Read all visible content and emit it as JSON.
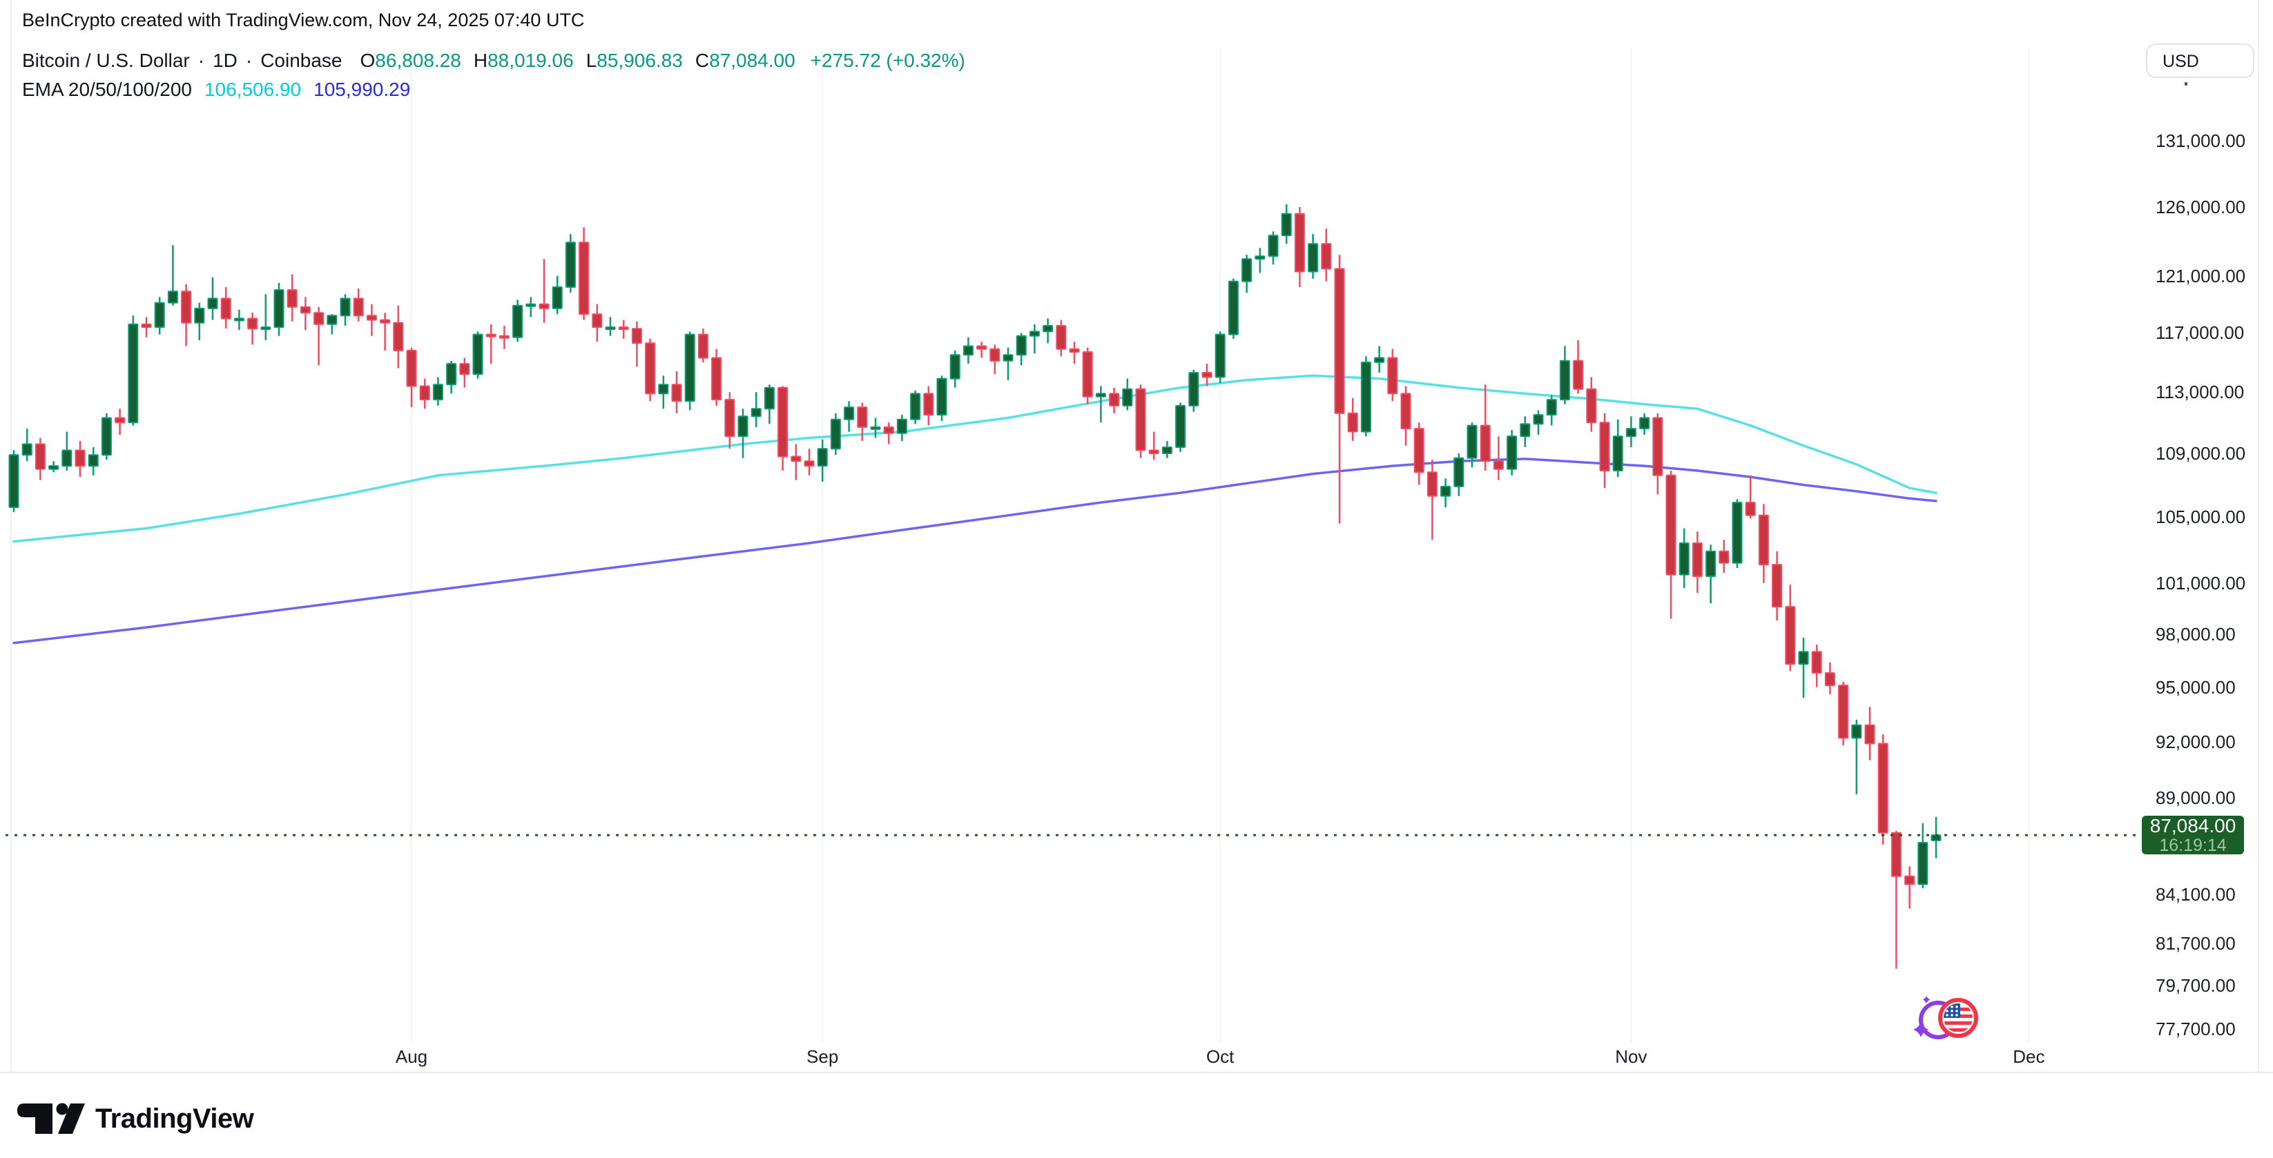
{
  "header": {
    "watermark": "BeInCrypto created with TradingView.com, Nov 24, 2025 07:40 UTC",
    "legend": {
      "symbol": "Bitcoin / U.S. Dollar",
      "separator": "·",
      "interval": "1D",
      "exchange": "Coinbase",
      "ohlc": {
        "o_label": "O",
        "o": "86,808.28",
        "h_label": "H",
        "h": "88,019.06",
        "l_label": "L",
        "l": "85,906.83",
        "c_label": "C",
        "c": "87,084.00",
        "change": "+275.72 (+0.32%)"
      },
      "indicator": {
        "label": "EMA 20/50/100/200",
        "value_fast": "106,506.90",
        "value_slow": "105,990.29"
      }
    }
  },
  "price_axis": {
    "currency": "USD",
    "ticks": [
      {
        "label": "131,000.00",
        "value": 131000
      },
      {
        "label": "126,000.00",
        "value": 126000
      },
      {
        "label": "121,000.00",
        "value": 121000
      },
      {
        "label": "117,000.00",
        "value": 117000
      },
      {
        "label": "113,000.00",
        "value": 113000
      },
      {
        "label": "109,000.00",
        "value": 109000
      },
      {
        "label": "105,000.00",
        "value": 105000
      },
      {
        "label": "101,000.00",
        "value": 101000
      },
      {
        "label": "98,000.00",
        "value": 98000
      },
      {
        "label": "95,000.00",
        "value": 95000
      },
      {
        "label": "92,000.00",
        "value": 92000
      },
      {
        "label": "89,000.00",
        "value": 89000
      },
      {
        "label": "84,100.00",
        "value": 84100
      },
      {
        "label": "81,700.00",
        "value": 81700
      },
      {
        "label": "79,700.00",
        "value": 79700
      },
      {
        "label": "77,700.00",
        "value": 77700
      }
    ],
    "last_price": {
      "label": "87,084.00",
      "countdown": "16:19:14",
      "value": 87084
    }
  },
  "time_axis": {
    "months": [
      {
        "label": "Aug",
        "day_index": 30
      },
      {
        "label": "Sep",
        "day_index": 61
      },
      {
        "label": "Oct",
        "day_index": 91
      },
      {
        "label": "Nov",
        "day_index": 122
      },
      {
        "label": "Dec",
        "day_index": 152
      }
    ]
  },
  "footer": {
    "brand": "TradingView"
  },
  "colors": {
    "up_body": "#155F34",
    "up_border": "#0A9B71",
    "down_body": "#C93745",
    "down_border": "#F24B5F",
    "ema_fast_line": "#57E0E6",
    "ema_slow_line": "#6A66F2",
    "dotted_line": "#1A5B25",
    "label_bg": "#1A5E28",
    "grid": "#F2F4F7",
    "frame": "#ECEEF2",
    "accent_up": "#089981",
    "accent_down": "#F23645",
    "flag_blue": "#2450A8",
    "coin_purple": "#8B3DE8"
  },
  "chart_data": {
    "type": "candlestick",
    "title": "Bitcoin / U.S. Dollar · 1D · Coinbase",
    "scale": "log",
    "start_date": "2025-07-02",
    "end_date": "2025-11-24",
    "ylim": [
      76500,
      134000
    ],
    "grid": "monthly-vertical",
    "last_price": 87084,
    "candles": [
      [
        105600,
        109200,
        105300,
        108900
      ],
      [
        108900,
        110600,
        108500,
        109600
      ],
      [
        109600,
        110000,
        107300,
        108000
      ],
      [
        108000,
        108500,
        107800,
        108200
      ],
      [
        108200,
        110400,
        107900,
        109200
      ],
      [
        109200,
        109800,
        107500,
        108200
      ],
      [
        108200,
        109400,
        107600,
        108900
      ],
      [
        108900,
        111600,
        108600,
        111300
      ],
      [
        111300,
        111900,
        110200,
        111000
      ],
      [
        111000,
        118200,
        110800,
        117600
      ],
      [
        117600,
        118100,
        116700,
        117400
      ],
      [
        117400,
        119500,
        116900,
        119100
      ],
      [
        119100,
        123200,
        118900,
        119900
      ],
      [
        119900,
        120400,
        116100,
        117700
      ],
      [
        117700,
        119100,
        116500,
        118700
      ],
      [
        118700,
        120900,
        117900,
        119400
      ],
      [
        119400,
        120200,
        117300,
        118000
      ],
      [
        118000,
        118600,
        117200,
        118000
      ],
      [
        118000,
        118400,
        116200,
        117300
      ],
      [
        117300,
        119700,
        116500,
        117400
      ],
      [
        117400,
        120500,
        116800,
        120000
      ],
      [
        120000,
        121100,
        117800,
        118800
      ],
      [
        118800,
        119500,
        117200,
        118400
      ],
      [
        118400,
        118800,
        114800,
        117600
      ],
      [
        117600,
        118300,
        116900,
        118200
      ],
      [
        118200,
        119700,
        117500,
        119400
      ],
      [
        119400,
        120100,
        117800,
        118200
      ],
      [
        118200,
        119000,
        116800,
        117900
      ],
      [
        117900,
        118400,
        115800,
        117700
      ],
      [
        117700,
        118900,
        114600,
        115800
      ],
      [
        115800,
        116000,
        112000,
        113400
      ],
      [
        113400,
        113900,
        111900,
        112500
      ],
      [
        112500,
        114000,
        112100,
        113500
      ],
      [
        113500,
        115100,
        112900,
        114900
      ],
      [
        114900,
        115300,
        113300,
        114200
      ],
      [
        114200,
        117100,
        113900,
        116900
      ],
      [
        116900,
        117600,
        114900,
        116800
      ],
      [
        116800,
        117500,
        115900,
        116700
      ],
      [
        116700,
        119300,
        116400,
        118900
      ],
      [
        118900,
        119500,
        118100,
        119000
      ],
      [
        119000,
        122200,
        117700,
        118700
      ],
      [
        118700,
        121000,
        118300,
        120200
      ],
      [
        120200,
        124000,
        119800,
        123400
      ],
      [
        123400,
        124500,
        117900,
        118300
      ],
      [
        118300,
        119000,
        116400,
        117400
      ],
      [
        117400,
        118100,
        116800,
        117400
      ],
      [
        117400,
        117900,
        116600,
        117300
      ],
      [
        117300,
        117800,
        114700,
        116300
      ],
      [
        116300,
        116600,
        112400,
        112900
      ],
      [
        112900,
        114100,
        111900,
        113500
      ],
      [
        113500,
        114400,
        111600,
        112400
      ],
      [
        112400,
        117100,
        111800,
        116900
      ],
      [
        116900,
        117300,
        115000,
        115300
      ],
      [
        115300,
        115900,
        112100,
        112500
      ],
      [
        112500,
        113000,
        109300,
        110100
      ],
      [
        110100,
        111900,
        108700,
        111400
      ],
      [
        111400,
        113000,
        110700,
        111900
      ],
      [
        111900,
        113500,
        110900,
        113300
      ],
      [
        113300,
        113400,
        107900,
        108800
      ],
      [
        108800,
        109600,
        107300,
        108500
      ],
      [
        108500,
        109300,
        107600,
        108200
      ],
      [
        108200,
        109900,
        107200,
        109300
      ],
      [
        109300,
        111600,
        108900,
        111200
      ],
      [
        111200,
        112400,
        110400,
        112000
      ],
      [
        112000,
        112300,
        109800,
        110700
      ],
      [
        110700,
        111300,
        110000,
        110700
      ],
      [
        110700,
        111000,
        109600,
        110300
      ],
      [
        110300,
        111500,
        109800,
        111200
      ],
      [
        111200,
        113100,
        110900,
        112900
      ],
      [
        112900,
        113400,
        110800,
        111500
      ],
      [
        111500,
        114100,
        111100,
        113900
      ],
      [
        113900,
        115800,
        113300,
        115500
      ],
      [
        115500,
        116700,
        114900,
        116100
      ],
      [
        116100,
        116400,
        115300,
        115900
      ],
      [
        115900,
        116200,
        114200,
        115100
      ],
      [
        115100,
        116000,
        113800,
        115500
      ],
      [
        115500,
        117000,
        114800,
        116800
      ],
      [
        116800,
        117600,
        115600,
        117100
      ],
      [
        117100,
        118000,
        116300,
        117500
      ],
      [
        117500,
        117900,
        115400,
        115900
      ],
      [
        115900,
        116400,
        114900,
        115700
      ],
      [
        115700,
        116000,
        112200,
        112700
      ],
      [
        112700,
        113400,
        111000,
        112900
      ],
      [
        112900,
        113300,
        111600,
        112100
      ],
      [
        112100,
        113900,
        111800,
        113200
      ],
      [
        113200,
        113500,
        108700,
        109200
      ],
      [
        109200,
        110400,
        108600,
        109000
      ],
      [
        109000,
        109800,
        108700,
        109400
      ],
      [
        109400,
        112300,
        109100,
        112100
      ],
      [
        112100,
        114500,
        111700,
        114300
      ],
      [
        114300,
        114900,
        113400,
        114000
      ],
      [
        114000,
        117100,
        113600,
        116900
      ],
      [
        116900,
        120800,
        116600,
        120600
      ],
      [
        120600,
        122500,
        119800,
        122200
      ],
      [
        122200,
        123000,
        121200,
        122400
      ],
      [
        122400,
        124200,
        121800,
        123900
      ],
      [
        123900,
        126200,
        123300,
        125500
      ],
      [
        125500,
        126000,
        120200,
        121300
      ],
      [
        121300,
        124000,
        120800,
        123300
      ],
      [
        123300,
        124400,
        120600,
        121500
      ],
      [
        121500,
        122500,
        104600,
        111600
      ],
      [
        111600,
        112600,
        109800,
        110400
      ],
      [
        110400,
        115400,
        110100,
        115000
      ],
      [
        115000,
        116100,
        114300,
        115300
      ],
      [
        115300,
        115900,
        112400,
        112900
      ],
      [
        112900,
        113400,
        109500,
        110600
      ],
      [
        110600,
        111000,
        107000,
        107800
      ],
      [
        107800,
        108600,
        103600,
        106300
      ],
      [
        106300,
        107400,
        105600,
        106900
      ],
      [
        106900,
        109000,
        106300,
        108700
      ],
      [
        108700,
        111000,
        108100,
        110800
      ],
      [
        110800,
        113500,
        107900,
        108500
      ],
      [
        108500,
        110100,
        107300,
        108000
      ],
      [
        108000,
        110500,
        107600,
        110100
      ],
      [
        110100,
        111400,
        109400,
        110900
      ],
      [
        110900,
        111800,
        110200,
        111500
      ],
      [
        111500,
        112800,
        110800,
        112500
      ],
      [
        112500,
        116100,
        112200,
        115100
      ],
      [
        115100,
        116500,
        112900,
        113200
      ],
      [
        113200,
        114000,
        110400,
        111000
      ],
      [
        111000,
        111600,
        106800,
        107900
      ],
      [
        107900,
        111200,
        107500,
        110100
      ],
      [
        110100,
        111400,
        109400,
        110600
      ],
      [
        110600,
        111600,
        110200,
        111300
      ],
      [
        111300,
        111600,
        106400,
        107600
      ],
      [
        107600,
        107900,
        98900,
        101500
      ],
      [
        101500,
        104300,
        100700,
        103400
      ],
      [
        103400,
        104100,
        100400,
        101400
      ],
      [
        101400,
        103300,
        99800,
        102900
      ],
      [
        102900,
        103600,
        101600,
        102200
      ],
      [
        102200,
        106100,
        101900,
        105900
      ],
      [
        105900,
        107600,
        104900,
        105100
      ],
      [
        105100,
        105800,
        101000,
        102100
      ],
      [
        102100,
        102900,
        98800,
        99600
      ],
      [
        99600,
        100900,
        95900,
        96300
      ],
      [
        96300,
        97800,
        94400,
        97000
      ],
      [
        97000,
        97400,
        95000,
        95800
      ],
      [
        95800,
        96400,
        94600,
        95100
      ],
      [
        95100,
        95300,
        91800,
        92200
      ],
      [
        92200,
        93200,
        89200,
        92900
      ],
      [
        92900,
        93900,
        91000,
        91900
      ],
      [
        91900,
        92400,
        86600,
        87200
      ],
      [
        87200,
        87300,
        80500,
        85000
      ],
      [
        85000,
        85500,
        83400,
        84600
      ],
      [
        84600,
        87700,
        84400,
        86700
      ],
      [
        86808.28,
        88019.06,
        85906.83,
        87084.0
      ]
    ],
    "emas": [
      {
        "name": "EMA fast (cyan)",
        "legend_value": 106506.9,
        "color": "#57E0E6",
        "points": [
          [
            0,
            103500
          ],
          [
            10,
            104300
          ],
          [
            17,
            105200
          ],
          [
            25,
            106400
          ],
          [
            32,
            107600
          ],
          [
            40,
            108200
          ],
          [
            46,
            108700
          ],
          [
            55,
            109600
          ],
          [
            60,
            110000
          ],
          [
            67,
            110400
          ],
          [
            75,
            111300
          ],
          [
            82,
            112400
          ],
          [
            88,
            113300
          ],
          [
            93,
            113800
          ],
          [
            98,
            114100
          ],
          [
            103,
            113900
          ],
          [
            109,
            113300
          ],
          [
            114,
            112900
          ],
          [
            119,
            112550
          ],
          [
            123,
            112200
          ],
          [
            127,
            111900
          ],
          [
            131,
            110800
          ],
          [
            135,
            109500
          ],
          [
            139,
            108300
          ],
          [
            143,
            106800
          ],
          [
            145,
            106500
          ]
        ]
      },
      {
        "name": "EMA slow (blue)",
        "legend_value": 105990.29,
        "color": "#6A66F2",
        "points": [
          [
            0,
            97500
          ],
          [
            10,
            98400
          ],
          [
            20,
            99400
          ],
          [
            30,
            100400
          ],
          [
            40,
            101400
          ],
          [
            50,
            102400
          ],
          [
            60,
            103400
          ],
          [
            67,
            104200
          ],
          [
            75,
            105100
          ],
          [
            82,
            105900
          ],
          [
            88,
            106500
          ],
          [
            93,
            107100
          ],
          [
            98,
            107700
          ],
          [
            104,
            108200
          ],
          [
            109,
            108500
          ],
          [
            114,
            108650
          ],
          [
            119,
            108400
          ],
          [
            123,
            108200
          ],
          [
            127,
            107900
          ],
          [
            131,
            107500
          ],
          [
            135,
            107000
          ],
          [
            139,
            106600
          ],
          [
            143,
            106150
          ],
          [
            145,
            105990
          ]
        ]
      }
    ]
  }
}
